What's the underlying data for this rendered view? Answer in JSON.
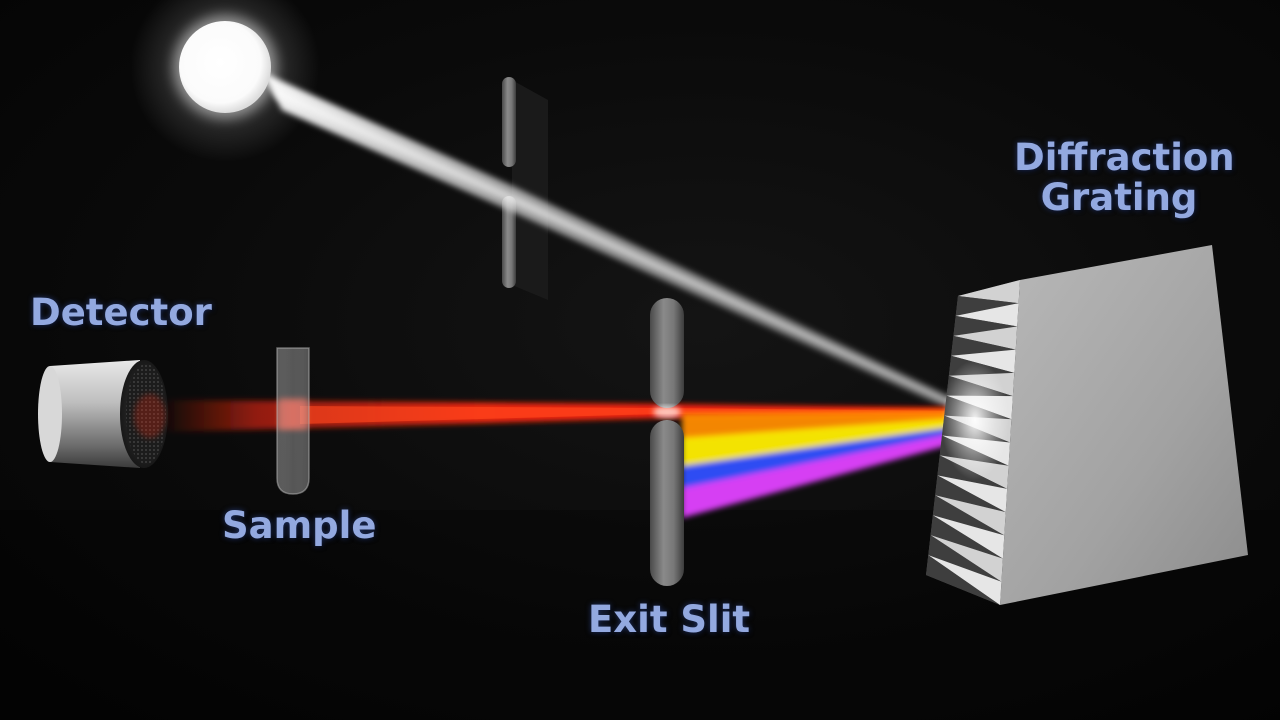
{
  "labels": {
    "detector": "Detector",
    "sample": "Sample",
    "exit_slit": "Exit Slit",
    "diffraction_grating_line1": "Diffraction",
    "diffraction_grating_line2": "Grating"
  },
  "colors": {
    "label_text": "#93a9e0",
    "beam_red": "#ff2a10",
    "beam_orange": "#ff8c00",
    "beam_yellow": "#ffee00",
    "beam_blue": "#3050ff",
    "beam_magenta": "#e040ff",
    "light_source": "#ffffff"
  }
}
